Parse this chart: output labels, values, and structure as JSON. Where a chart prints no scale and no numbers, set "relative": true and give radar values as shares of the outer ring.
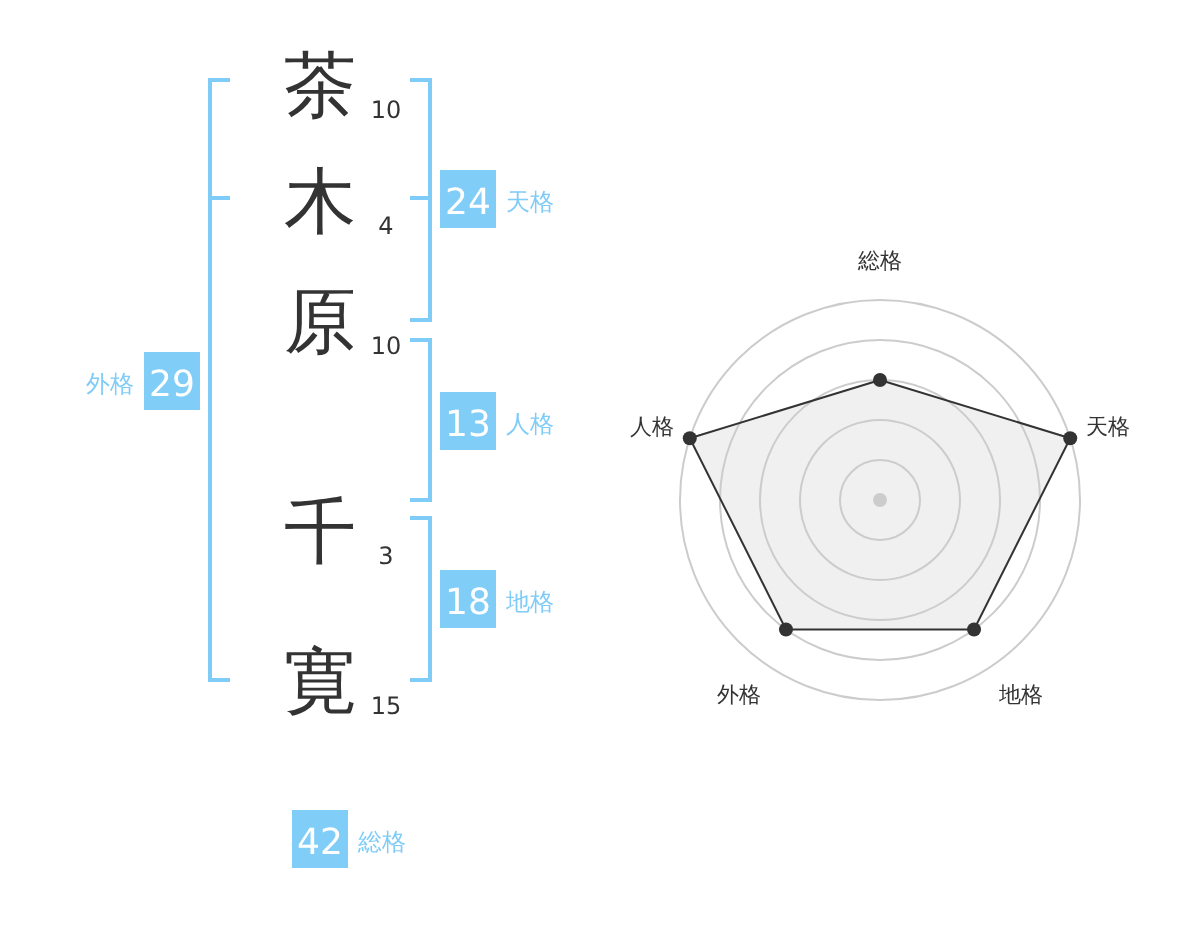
{
  "chart_data": [
    {
      "type": "other",
      "categories": [
        "茶",
        "木",
        "原",
        "千",
        "寛"
      ],
      "color": "#333333",
      "annotations": [
        "24",
        "天格",
        "13",
        "人格",
        "18",
        "地格",
        "29",
        "外格",
        "42",
        "総格",
        "10",
        "4",
        "10",
        "3",
        "15"
      ]
    },
    {
      "type": "radar",
      "categories": [
        "総格",
        "天格",
        "地格",
        "外格",
        "人格"
      ],
      "relative": true,
      "grid": true,
      "marker": "circle",
      "series": [
        {
          "color": "#333333",
          "values": [
            0.6,
            1,
            0.8,
            0.8,
            1
          ]
        }
      ]
    }
  ]
}
